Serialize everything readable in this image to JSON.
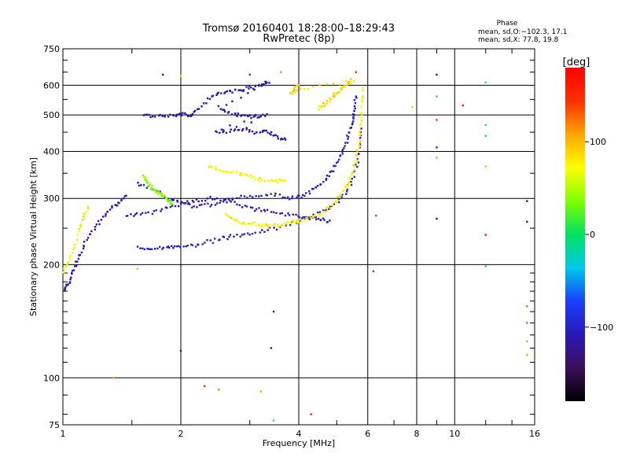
{
  "title": {
    "line1": "Tromsø 20160401 18:28:00–18:29:43",
    "line2": "RwPretec (8p)"
  },
  "phase_box": {
    "heading": "Phase",
    "line_o": "mean, sd,O:−102.3, 17.1",
    "line_x": "mean, sd,X:  77.8, 19.8"
  },
  "colorbar": {
    "label": "[deg]",
    "range": [
      -180,
      180
    ],
    "ticks": [
      {
        "value": 100,
        "label": "100"
      },
      {
        "value": 0,
        "label": "0"
      },
      {
        "value": -100,
        "label": "−100"
      }
    ],
    "colors": [
      "#000000",
      "#3a0f5a",
      "#2a18b8",
      "#1a40ff",
      "#00c8e8",
      "#00e060",
      "#80ff00",
      "#ffff00",
      "#ffa500",
      "#ff3000",
      "#ff0000"
    ]
  },
  "chart_data": {
    "type": "scatter",
    "xlabel": "Frequency [MHz]",
    "ylabel": "Stationary phase Virtual Height [km]",
    "x_scale": "log",
    "y_scale": "log",
    "xlim": [
      1,
      16
    ],
    "ylim": [
      75,
      750
    ],
    "grid": true,
    "x_ticks": [
      {
        "value": 1,
        "label": "1"
      },
      {
        "value": 2,
        "label": "2"
      },
      {
        "value": 4,
        "label": "4"
      },
      {
        "value": 6,
        "label": "6"
      },
      {
        "value": 8,
        "label": "8"
      },
      {
        "value": 10,
        "label": "10"
      },
      {
        "value": 16,
        "label": "16"
      }
    ],
    "x_minor_ticks": [
      1.5,
      3,
      5,
      7,
      9,
      12,
      14
    ],
    "y_ticks": [
      {
        "value": 75,
        "label": "75"
      },
      {
        "value": 100,
        "label": "100"
      },
      {
        "value": 200,
        "label": "200"
      },
      {
        "value": 300,
        "label": "300"
      },
      {
        "value": 400,
        "label": "400"
      },
      {
        "value": 500,
        "label": "500"
      },
      {
        "value": 600,
        "label": "600"
      },
      {
        "value": 750,
        "label": "750"
      }
    ],
    "y_minor_ticks": [
      80,
      90,
      110,
      120,
      130,
      140,
      150,
      160,
      170,
      180,
      190,
      250,
      350,
      450,
      550,
      650,
      700
    ],
    "traces": [
      {
        "mode": "O",
        "phase": -100,
        "phase_sd": 22,
        "points": [
          [
            1.55,
            221
          ],
          [
            1.7,
            220
          ],
          [
            1.85,
            222
          ],
          [
            2.0,
            224
          ],
          [
            2.2,
            226
          ],
          [
            2.45,
            232
          ],
          [
            2.7,
            238
          ],
          [
            3.0,
            242
          ],
          [
            3.4,
            248
          ],
          [
            3.8,
            256
          ],
          [
            4.2,
            265
          ],
          [
            4.6,
            276
          ],
          [
            5.0,
            292
          ],
          [
            5.3,
            312
          ],
          [
            5.55,
            345
          ],
          [
            5.7,
            400
          ],
          [
            5.78,
            460
          ]
        ]
      },
      {
        "mode": "O",
        "phase": -110,
        "phase_sd": 20,
        "points": [
          [
            1.45,
            270
          ],
          [
            1.6,
            272
          ],
          [
            1.8,
            280
          ],
          [
            2.0,
            290
          ],
          [
            2.2,
            296
          ],
          [
            2.45,
            300
          ],
          [
            2.7,
            292
          ],
          [
            3.0,
            284
          ],
          [
            3.3,
            278
          ],
          [
            3.7,
            272
          ],
          [
            4.1,
            268
          ],
          [
            4.5,
            264
          ],
          [
            4.8,
            262
          ]
        ]
      },
      {
        "mode": "O",
        "phase": -105,
        "phase_sd": 20,
        "points": [
          [
            1.55,
            330
          ],
          [
            1.7,
            316
          ],
          [
            1.85,
            300
          ],
          [
            2.0,
            292
          ],
          [
            2.2,
            285
          ],
          [
            2.45,
            290
          ],
          [
            2.7,
            298
          ],
          [
            3.0,
            302
          ],
          [
            3.4,
            308
          ],
          [
            3.8,
            300
          ],
          [
            4.1,
            304
          ],
          [
            4.4,
            318
          ],
          [
            4.7,
            338
          ],
          [
            4.95,
            365
          ],
          [
            5.15,
            395
          ],
          [
            5.3,
            430
          ],
          [
            5.45,
            470
          ],
          [
            5.55,
            510
          ],
          [
            5.6,
            560
          ]
        ]
      },
      {
        "mode": "O",
        "phase": -115,
        "phase_sd": 18,
        "points": [
          [
            1.6,
            500
          ],
          [
            1.75,
            495
          ],
          [
            1.9,
            500
          ],
          [
            2.0,
            505
          ],
          [
            2.1,
            495
          ],
          [
            2.2,
            515
          ],
          [
            2.4,
            560
          ],
          [
            2.6,
            575
          ],
          [
            2.8,
            580
          ],
          [
            3.0,
            590
          ],
          [
            3.2,
            600
          ],
          [
            3.35,
            610
          ],
          [
            2.5,
            520
          ],
          [
            2.7,
            505
          ],
          [
            2.9,
            500
          ],
          [
            3.1,
            495
          ],
          [
            3.3,
            500
          ],
          [
            2.45,
            450
          ],
          [
            2.65,
            455
          ],
          [
            2.9,
            460
          ],
          [
            3.1,
            450
          ],
          [
            3.3,
            455
          ],
          [
            3.5,
            440
          ],
          [
            3.7,
            430
          ]
        ]
      },
      {
        "mode": "O",
        "phase": -110,
        "phase_sd": 22,
        "points": [
          [
            1.0,
            170
          ],
          [
            1.03,
            178
          ],
          [
            1.06,
            192
          ],
          [
            1.1,
            210
          ],
          [
            1.15,
            232
          ],
          [
            1.22,
            255
          ],
          [
            1.3,
            275
          ],
          [
            1.38,
            290
          ],
          [
            1.45,
            305
          ]
        ]
      },
      {
        "mode": "X",
        "phase": 78,
        "phase_sd": 22,
        "points": [
          [
            2.6,
            270
          ],
          [
            2.75,
            262
          ],
          [
            2.9,
            258
          ],
          [
            3.1,
            256
          ],
          [
            3.3,
            254
          ],
          [
            3.55,
            254
          ],
          [
            3.8,
            258
          ],
          [
            4.0,
            262
          ],
          [
            4.3,
            267
          ],
          [
            4.6,
            275
          ],
          [
            4.9,
            290
          ],
          [
            5.1,
            305
          ],
          [
            5.3,
            322
          ],
          [
            5.45,
            342
          ],
          [
            5.58,
            370
          ],
          [
            5.68,
            410
          ],
          [
            5.75,
            460
          ],
          [
            5.8,
            520
          ],
          [
            5.82,
            590
          ]
        ]
      },
      {
        "mode": "X",
        "phase": 75,
        "phase_sd": 20,
        "points": [
          [
            2.35,
            365
          ],
          [
            2.5,
            358
          ],
          [
            2.7,
            352
          ],
          [
            2.9,
            345
          ],
          [
            3.1,
            340
          ],
          [
            3.3,
            336
          ],
          [
            3.5,
            333
          ],
          [
            3.7,
            335
          ]
        ]
      },
      {
        "mode": "X",
        "phase": 40,
        "phase_sd": 30,
        "points": [
          [
            1.6,
            345
          ],
          [
            1.65,
            330
          ],
          [
            1.7,
            320
          ],
          [
            1.75,
            312
          ],
          [
            1.8,
            305
          ],
          [
            1.85,
            298
          ],
          [
            1.9,
            290
          ]
        ]
      },
      {
        "mode": "X",
        "phase": 90,
        "phase_sd": 22,
        "points": [
          [
            4.5,
            520
          ],
          [
            4.7,
            540
          ],
          [
            4.9,
            560
          ],
          [
            5.1,
            580
          ],
          [
            5.3,
            600
          ],
          [
            5.5,
            620
          ],
          [
            4.2,
            590
          ],
          [
            3.8,
            570
          ],
          [
            4.0,
            600
          ]
        ]
      },
      {
        "mode": "X",
        "phase": 60,
        "phase_sd": 35,
        "points": [
          [
            1.0,
            190
          ],
          [
            1.04,
            205
          ],
          [
            1.08,
            230
          ],
          [
            1.12,
            262
          ],
          [
            1.16,
            285
          ]
        ]
      }
    ],
    "scatter_points": [
      {
        "x": 2.3,
        "y": 95,
        "phase": 150
      },
      {
        "x": 2.5,
        "y": 93,
        "phase": 120
      },
      {
        "x": 3.2,
        "y": 92,
        "phase": 110
      },
      {
        "x": 3.45,
        "y": 77,
        "phase": 10
      },
      {
        "x": 4.3,
        "y": 80,
        "phase": 160
      },
      {
        "x": 3.4,
        "y": 120,
        "phase": -110
      },
      {
        "x": 3.45,
        "y": 150,
        "phase": -100
      },
      {
        "x": 2.0,
        "y": 118,
        "phase": -120
      },
      {
        "x": 1.35,
        "y": 100,
        "phase": 110
      },
      {
        "x": 1.55,
        "y": 195,
        "phase": 100
      },
      {
        "x": 6.2,
        "y": 192,
        "phase": 160
      },
      {
        "x": 6.3,
        "y": 270,
        "phase": 140
      },
      {
        "x": 7.8,
        "y": 525,
        "phase": 90
      },
      {
        "x": 9.0,
        "y": 640,
        "phase": -120
      },
      {
        "x": 9.0,
        "y": 560,
        "phase": 10
      },
      {
        "x": 9.0,
        "y": 485,
        "phase": 140
      },
      {
        "x": 9.0,
        "y": 410,
        "phase": -100
      },
      {
        "x": 9.0,
        "y": 385,
        "phase": 20
      },
      {
        "x": 9.0,
        "y": 265,
        "phase": -130
      },
      {
        "x": 10.5,
        "y": 530,
        "phase": 160
      },
      {
        "x": 12.0,
        "y": 610,
        "phase": 10
      },
      {
        "x": 12.0,
        "y": 470,
        "phase": 10
      },
      {
        "x": 12.0,
        "y": 440,
        "phase": -20
      },
      {
        "x": 12.0,
        "y": 365,
        "phase": 100
      },
      {
        "x": 12.0,
        "y": 240,
        "phase": 150
      },
      {
        "x": 12.0,
        "y": 198,
        "phase": 10
      },
      {
        "x": 15.3,
        "y": 295,
        "phase": -130
      },
      {
        "x": 15.3,
        "y": 260,
        "phase": -130
      },
      {
        "x": 15.3,
        "y": 155,
        "phase": 130
      },
      {
        "x": 15.3,
        "y": 140,
        "phase": 130
      },
      {
        "x": 15.3,
        "y": 125,
        "phase": 20
      },
      {
        "x": 15.3,
        "y": 115,
        "phase": 110
      },
      {
        "x": 1.8,
        "y": 640,
        "phase": -120
      },
      {
        "x": 2.0,
        "y": 635,
        "phase": 60
      },
      {
        "x": 3.0,
        "y": 640,
        "phase": -80
      },
      {
        "x": 3.6,
        "y": 650,
        "phase": 20
      },
      {
        "x": 5.6,
        "y": 650,
        "phase": 150
      }
    ]
  }
}
